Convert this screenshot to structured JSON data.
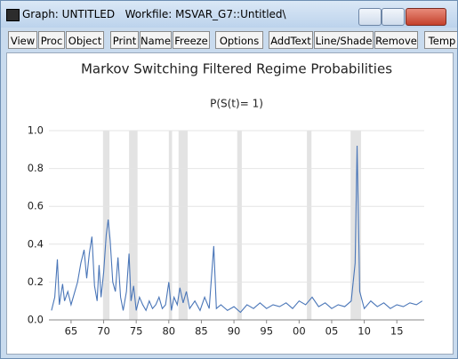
{
  "window": {
    "title": "Graph: UNTITLED   Workfile: MSVAR_G7::Untitled\\"
  },
  "toolbar": [
    "View",
    "Proc",
    "Object",
    "Print",
    "Name",
    "Freeze",
    "Options",
    "AddText",
    "Line/Shade",
    "Remove",
    "Temp"
  ],
  "chart_data": {
    "type": "line",
    "title": "Markov Switching Filtered Regime Probabilities",
    "subtitle": "P(S(t)= 1)",
    "color": "#4a76b8",
    "shade_color": "#e3e3e3",
    "grid": true,
    "xlim": [
      1961.6,
      2019.2
    ],
    "ylim": [
      0,
      1
    ],
    "xticks": [
      {
        "value": 1965,
        "label": "65"
      },
      {
        "value": 1970,
        "label": "70"
      },
      {
        "value": 1975,
        "label": "75"
      },
      {
        "value": 1980,
        "label": "80"
      },
      {
        "value": 1985,
        "label": "85"
      },
      {
        "value": 1990,
        "label": "90"
      },
      {
        "value": 1995,
        "label": "95"
      },
      {
        "value": 2000,
        "label": "00"
      },
      {
        "value": 2005,
        "label": "05"
      },
      {
        "value": 2010,
        "label": "10"
      },
      {
        "value": 2015,
        "label": "15"
      }
    ],
    "yticks": [
      {
        "value": 0,
        "label": "0.0"
      },
      {
        "value": 0.2,
        "label": "0.2"
      },
      {
        "value": 0.4,
        "label": "0.4"
      },
      {
        "value": 0.6,
        "label": "0.6"
      },
      {
        "value": 0.8,
        "label": "0.8"
      },
      {
        "value": 1,
        "label": "1.0"
      }
    ],
    "shading": [
      [
        1969.9,
        1970.9
      ],
      [
        1973.9,
        1975.2
      ],
      [
        1980.0,
        1980.5
      ],
      [
        1981.5,
        1982.9
      ],
      [
        1990.5,
        1991.2
      ],
      [
        2001.2,
        2001.9
      ],
      [
        2007.9,
        2009.5
      ]
    ],
    "x": [
      1962.0,
      1962.5,
      1962.9,
      1963.2,
      1963.7,
      1964.0,
      1964.5,
      1965.0,
      1965.5,
      1966.0,
      1966.5,
      1967.0,
      1967.4,
      1967.8,
      1968.2,
      1968.6,
      1969.0,
      1969.3,
      1969.6,
      1970.0,
      1970.4,
      1970.7,
      1971.0,
      1971.4,
      1971.8,
      1972.2,
      1972.6,
      1973.0,
      1973.5,
      1973.9,
      1974.2,
      1974.6,
      1975.0,
      1975.5,
      1976.0,
      1976.5,
      1977.0,
      1977.5,
      1978.0,
      1978.5,
      1979.0,
      1979.5,
      1980.0,
      1980.4,
      1980.8,
      1981.3,
      1981.7,
      1982.2,
      1982.7,
      1983.2,
      1984.0,
      1984.8,
      1985.5,
      1986.2,
      1986.9,
      1987.3,
      1988.0,
      1989.0,
      1990.0,
      1991.0,
      1992.0,
      1993.0,
      1994.0,
      1995.0,
      1996.0,
      1997.0,
      1998.0,
      1999.0,
      2000.0,
      2001.0,
      2002.0,
      2003.0,
      2004.0,
      2005.0,
      2006.0,
      2007.0,
      2008.0,
      2008.6,
      2008.9,
      2009.3,
      2010.0,
      2011.0,
      2012.0,
      2013.0,
      2014.0,
      2015.0,
      2016.0,
      2017.0,
      2018.0,
      2018.9
    ],
    "values": [
      0.05,
      0.12,
      0.32,
      0.08,
      0.19,
      0.1,
      0.15,
      0.08,
      0.14,
      0.2,
      0.3,
      0.37,
      0.22,
      0.35,
      0.44,
      0.18,
      0.1,
      0.29,
      0.12,
      0.25,
      0.45,
      0.53,
      0.42,
      0.2,
      0.15,
      0.33,
      0.12,
      0.05,
      0.15,
      0.35,
      0.1,
      0.18,
      0.05,
      0.12,
      0.08,
      0.05,
      0.1,
      0.06,
      0.08,
      0.12,
      0.06,
      0.08,
      0.2,
      0.05,
      0.12,
      0.08,
      0.17,
      0.09,
      0.15,
      0.06,
      0.1,
      0.05,
      0.12,
      0.06,
      0.39,
      0.06,
      0.08,
      0.05,
      0.07,
      0.04,
      0.08,
      0.06,
      0.09,
      0.06,
      0.08,
      0.07,
      0.09,
      0.06,
      0.1,
      0.08,
      0.12,
      0.07,
      0.09,
      0.06,
      0.08,
      0.07,
      0.1,
      0.3,
      0.92,
      0.15,
      0.06,
      0.1,
      0.07,
      0.09,
      0.06,
      0.08,
      0.07,
      0.09,
      0.08,
      0.1
    ]
  }
}
